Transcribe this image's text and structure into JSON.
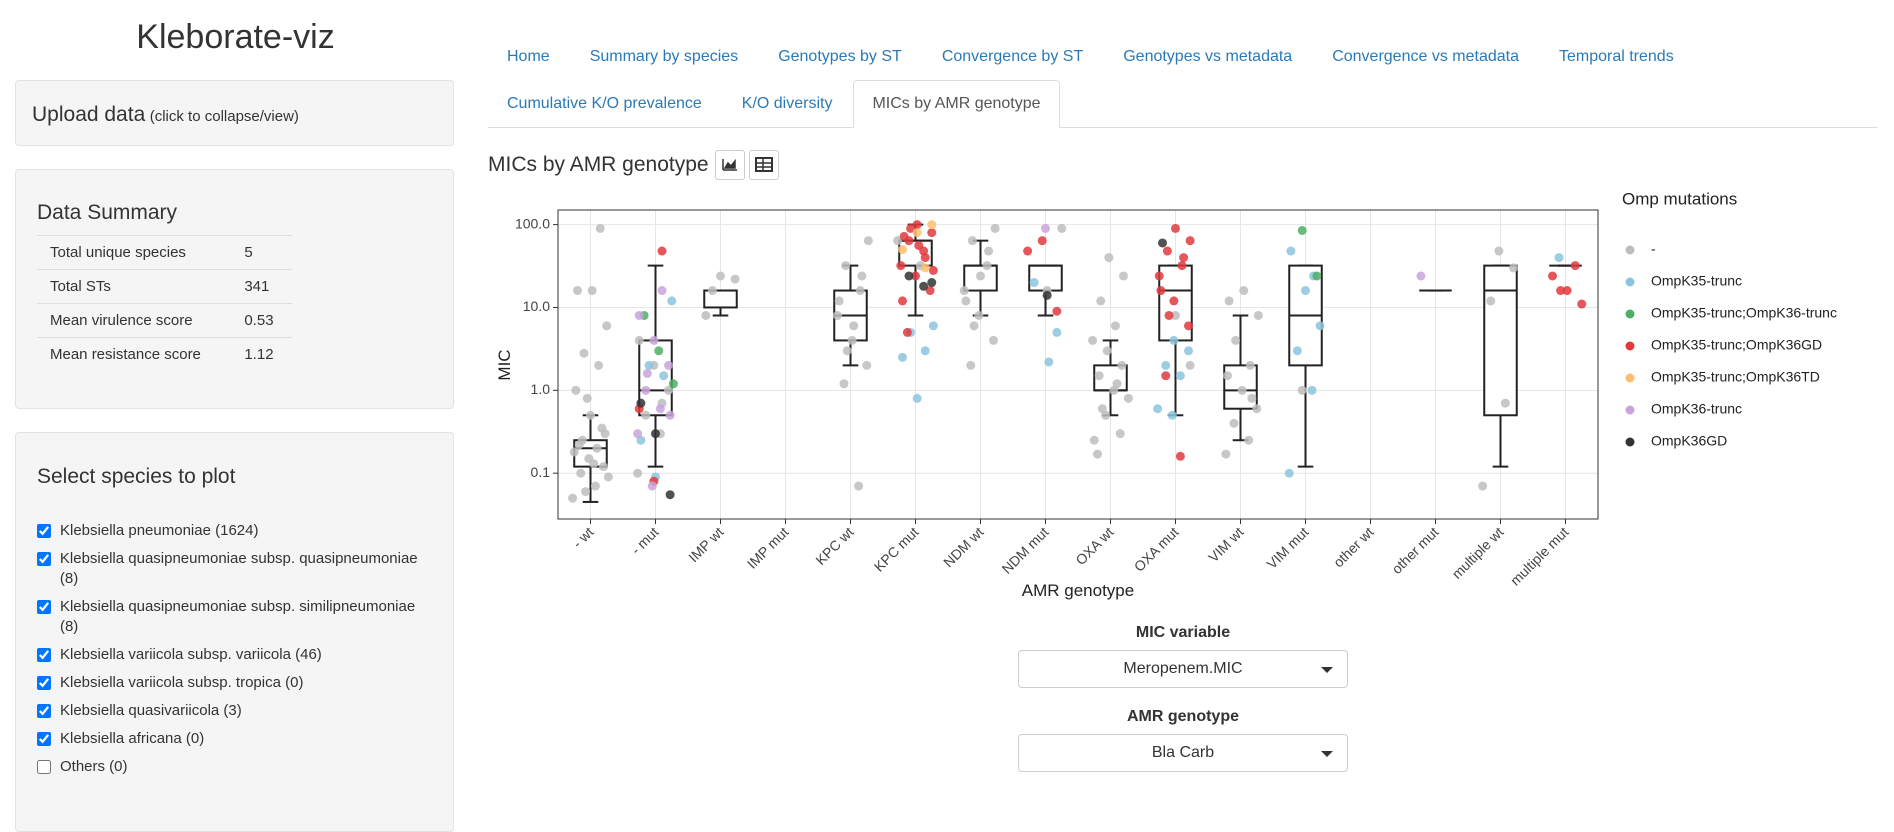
{
  "sidebar": {
    "title": "Kleborate-viz",
    "upload": {
      "label": "Upload data",
      "hint": "(click to collapse/view)"
    },
    "summary": {
      "title": "Data Summary",
      "rows": [
        [
          "Total unique species",
          5
        ],
        [
          "Total STs",
          341
        ],
        [
          "Mean virulence score",
          0.53
        ],
        [
          "Mean resistance score",
          1.12
        ]
      ]
    },
    "species": {
      "title": "Select species to plot",
      "items": [
        {
          "label": "Klebsiella pneumoniae (1624)",
          "checked": true
        },
        {
          "label": "Klebsiella quasipneumoniae subsp. quasipneumoniae (8)",
          "checked": true
        },
        {
          "label": "Klebsiella quasipneumoniae subsp. similipneumoniae (8)",
          "checked": true
        },
        {
          "label": "Klebsiella variicola subsp. variicola (46)",
          "checked": true
        },
        {
          "label": "Klebsiella variicola subsp. tropica (0)",
          "checked": true
        },
        {
          "label": "Klebsiella quasivariicola (3)",
          "checked": true
        },
        {
          "label": "Klebsiella africana (0)",
          "checked": true
        },
        {
          "label": "Others (0)",
          "checked": false
        }
      ]
    }
  },
  "tabs": {
    "items": [
      "Home",
      "Summary by species",
      "Genotypes by ST",
      "Convergence by ST",
      "Genotypes vs metadata",
      "Convergence vs metadata",
      "Temporal trends",
      "Cumulative K/O prevalence",
      "K/O diversity",
      "MICs by AMR genotype"
    ],
    "active": 9
  },
  "chart_title": "MICs by AMR genotype",
  "chart_data": {
    "type": "box",
    "x_label": "AMR genotype",
    "y_label": "MIC",
    "legend_title": "Omp mutations",
    "log_y": true,
    "grid": true,
    "ylim": [
      0.028,
      150
    ],
    "yticks": [
      0.1,
      {
        "value": 1,
        "label": "1.0"
      },
      {
        "value": 10,
        "label": "10.0"
      },
      {
        "value": 100,
        "label": "100.0"
      }
    ],
    "categories": [
      "- wt",
      "- mut",
      "IMP wt",
      "IMP mut",
      "KPC wt",
      "KPC mut",
      "NDM wt",
      "NDM mut",
      "OXA wt",
      "OXA mut",
      "VIM wt",
      "VIM mut",
      "other wt",
      "other mut",
      "multiple wt",
      "multiple mut"
    ],
    "box": {
      "min": [
        0.045,
        0.12,
        8,
        null,
        2,
        8,
        8,
        8,
        0.5,
        0.5,
        0.25,
        0.12,
        null,
        16,
        0.12,
        32
      ],
      "q1": [
        0.12,
        0.5,
        10,
        null,
        4,
        32,
        16,
        16,
        1,
        4,
        0.6,
        2,
        null,
        16,
        0.5,
        32
      ],
      "median": [
        0.2,
        1,
        16,
        null,
        8,
        64,
        32,
        32,
        1,
        16,
        1,
        8,
        null,
        16,
        16,
        32
      ],
      "q3": [
        0.25,
        4,
        16,
        null,
        16,
        64,
        32,
        32,
        2,
        32,
        2,
        32,
        null,
        16,
        32,
        32
      ],
      "max": [
        0.5,
        32,
        16,
        null,
        32,
        100,
        64,
        32,
        4,
        32,
        8,
        32,
        null,
        16,
        32,
        32
      ]
    },
    "series": [
      {
        "name": "-",
        "color": "#bdbdbd",
        "categories": [
          "- wt",
          "- wt",
          "- wt",
          "- wt",
          "- wt",
          "- wt",
          "- wt",
          "- wt",
          "- wt",
          "- wt",
          "- wt",
          "- wt",
          "- wt",
          "- wt",
          "- wt",
          "- wt",
          "- wt",
          "- wt",
          "- wt",
          "- wt",
          "- wt",
          "- wt",
          "- wt",
          "- mut",
          "- mut",
          "- mut",
          "- mut",
          "- mut",
          "- mut",
          "- mut",
          "IMP wt",
          "IMP wt",
          "IMP wt",
          "IMP wt",
          "KPC wt",
          "KPC wt",
          "KPC wt",
          "KPC wt",
          "KPC wt",
          "KPC wt",
          "KPC wt",
          "KPC wt",
          "KPC wt",
          "KPC wt",
          "KPC wt",
          "KPC wt",
          "KPC mut",
          "KPC mut",
          "NDM wt",
          "NDM wt",
          "NDM wt",
          "NDM wt",
          "NDM wt",
          "NDM wt",
          "NDM wt",
          "NDM wt",
          "NDM wt",
          "NDM wt",
          "NDM wt",
          "NDM mut",
          "NDM mut",
          "OXA wt",
          "OXA wt",
          "OXA wt",
          "OXA wt",
          "OXA wt",
          "OXA wt",
          "OXA wt",
          "OXA wt",
          "OXA wt",
          "OXA wt",
          "OXA wt",
          "OXA wt",
          "OXA wt",
          "OXA wt",
          "OXA wt",
          "OXA wt",
          "OXA mut",
          "OXA mut",
          "VIM wt",
          "VIM wt",
          "VIM wt",
          "VIM wt",
          "VIM wt",
          "VIM wt",
          "VIM wt",
          "VIM wt",
          "VIM wt",
          "VIM wt",
          "VIM wt",
          "VIM wt",
          "VIM mut",
          "multiple wt",
          "multiple wt",
          "multiple wt",
          "multiple wt",
          "multiple wt"
        ],
        "values": [
          0.05,
          0.07,
          0.1,
          0.12,
          0.15,
          0.18,
          0.2,
          0.25,
          0.3,
          0.5,
          1,
          2,
          2.8,
          6,
          16,
          16,
          90,
          0.06,
          0.09,
          0.13,
          0.22,
          0.35,
          0.8,
          0.1,
          0.3,
          0.5,
          1,
          2,
          4,
          0.7,
          16,
          22,
          24,
          8,
          0.07,
          1.2,
          2,
          4,
          8,
          16,
          32,
          64,
          6,
          12,
          24,
          3,
          64,
          32,
          2,
          4,
          8,
          16,
          32,
          64,
          90,
          24,
          12,
          48,
          6,
          90,
          16,
          0.17,
          0.3,
          0.5,
          0.8,
          1,
          1.5,
          2,
          3,
          4,
          6,
          12,
          24,
          40,
          0.25,
          1.2,
          0.6,
          2,
          8,
          0.17,
          0.25,
          0.4,
          0.6,
          1,
          1.5,
          2,
          4,
          8,
          16,
          12,
          0.8,
          1,
          0.07,
          0.7,
          12,
          30,
          48
        ]
      },
      {
        "name": "OmpK35-trunc",
        "color": "#8cc4de",
        "categories": [
          "- mut",
          "- mut",
          "- mut",
          "- mut",
          "- mut",
          "KPC mut",
          "KPC mut",
          "KPC mut",
          "KPC mut",
          "KPC mut",
          "NDM mut",
          "NDM mut",
          "NDM mut",
          "OXA mut",
          "OXA mut",
          "OXA mut",
          "OXA mut",
          "OXA mut",
          "OXA mut",
          "VIM mut",
          "VIM mut",
          "VIM mut",
          "VIM mut",
          "VIM mut",
          "VIM mut",
          "VIM mut",
          "multiple mut"
        ],
        "values": [
          0.09,
          0.25,
          1.5,
          2,
          12,
          0.8,
          2.5,
          3,
          5,
          6,
          2.2,
          20,
          5,
          0.5,
          0.6,
          1.5,
          2,
          3,
          4,
          0.1,
          1,
          3,
          6,
          16,
          48,
          24,
          40
        ]
      },
      {
        "name": "OmpK35-trunc;OmpK36-trunc",
        "color": "#4daf63",
        "categories": [
          "- mut",
          "- mut",
          "- mut",
          "VIM mut",
          "VIM mut"
        ],
        "values": [
          1.2,
          3,
          8,
          24,
          85
        ]
      },
      {
        "name": "OmpK35-trunc;OmpK36GD",
        "color": "#e03a3e",
        "categories": [
          "- mut",
          "- mut",
          "- mut",
          "KPC mut",
          "KPC mut",
          "KPC mut",
          "KPC mut",
          "KPC mut",
          "KPC mut",
          "KPC mut",
          "KPC mut",
          "KPC mut",
          "KPC mut",
          "KPC mut",
          "KPC mut",
          "KPC mut",
          "KPC mut",
          "NDM mut",
          "NDM mut",
          "NDM mut",
          "OXA mut",
          "OXA mut",
          "OXA mut",
          "OXA mut",
          "OXA mut",
          "OXA mut",
          "OXA mut",
          "OXA mut",
          "OXA mut",
          "OXA mut",
          "OXA mut",
          "OXA mut",
          "multiple mut",
          "multiple mut",
          "multiple mut",
          "multiple mut",
          "multiple mut"
        ],
        "values": [
          0.08,
          0.6,
          48,
          5,
          16,
          24,
          32,
          48,
          64,
          80,
          100,
          12,
          40,
          90,
          28,
          56,
          72,
          9,
          64,
          48,
          0.16,
          1.5,
          6,
          12,
          24,
          32,
          48,
          64,
          90,
          16,
          40,
          8,
          11,
          16,
          24,
          32,
          16
        ]
      },
      {
        "name": "OmpK35-trunc;OmpK36TD",
        "color": "#fdbf6f",
        "categories": [
          "KPC mut",
          "KPC mut",
          "KPC mut",
          "KPC mut"
        ],
        "values": [
          100,
          80,
          50,
          30
        ]
      },
      {
        "name": "OmpK36-trunc",
        "color": "#c9a3d9",
        "categories": [
          "- mut",
          "- mut",
          "- mut",
          "- mut",
          "- mut",
          "- mut",
          "- mut",
          "- mut",
          "- mut",
          "- mut",
          "NDM mut",
          "other mut"
        ],
        "values": [
          0.07,
          0.3,
          0.6,
          1,
          2,
          4,
          8,
          16,
          1.6,
          0.5,
          90,
          24
        ]
      },
      {
        "name": "OmpK36GD",
        "color": "#333333",
        "categories": [
          "- mut",
          "- mut",
          "- mut",
          "KPC mut",
          "KPC mut",
          "KPC mut",
          "NDM mut",
          "OXA mut"
        ],
        "values": [
          0.055,
          0.3,
          0.7,
          18,
          24,
          20,
          14,
          60
        ]
      }
    ]
  },
  "controls": [
    {
      "label": "MIC variable",
      "value": "Meropenem.MIC"
    },
    {
      "label": "AMR genotype",
      "value": "Bla Carb"
    }
  ]
}
